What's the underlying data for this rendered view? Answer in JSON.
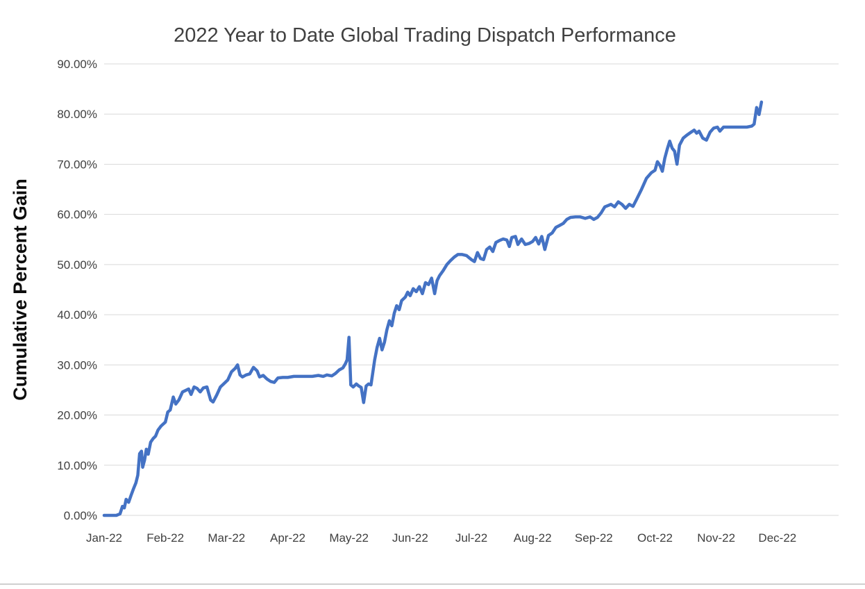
{
  "chart_data": {
    "type": "line",
    "title": "2022 Year to Date Global Trading Dispatch Performance",
    "xlabel": "",
    "ylabel": "Cumulative Percent Gain",
    "ylim": [
      0,
      90
    ],
    "xlim_months": [
      0,
      12
    ],
    "grid": "horizontal-only",
    "legend": "none",
    "gridline_color": "#D9D9D9",
    "bottom_border_color": "#BFBFBF",
    "y_ticks": [
      {
        "value": 0,
        "label": "0.00%"
      },
      {
        "value": 10,
        "label": "10.00%"
      },
      {
        "value": 20,
        "label": "20.00%"
      },
      {
        "value": 30,
        "label": "30.00%"
      },
      {
        "value": 40,
        "label": "40.00%"
      },
      {
        "value": 50,
        "label": "50.00%"
      },
      {
        "value": 60,
        "label": "60.00%"
      },
      {
        "value": 70,
        "label": "70.00%"
      },
      {
        "value": 80,
        "label": "80.00%"
      },
      {
        "value": 90,
        "label": "90.00%"
      }
    ],
    "x_tick_labels": [
      "Jan-22",
      "Feb-22",
      "Mar-22",
      "Apr-22",
      "May-22",
      "Jun-22",
      "Jul-22",
      "Aug-22",
      "Sep-22",
      "Oct-22",
      "Nov-22",
      "Dec-22"
    ],
    "series": [
      {
        "name": "Cumulative Percent Gain",
        "color": "#4472C4",
        "stroke_width": 4.5,
        "points": [
          [
            0.0,
            0
          ],
          [
            0.1,
            0
          ],
          [
            0.2,
            0
          ],
          [
            0.26,
            0.3
          ],
          [
            0.3,
            1.8
          ],
          [
            0.33,
            1.5
          ],
          [
            0.36,
            3.2
          ],
          [
            0.4,
            2.6
          ],
          [
            0.44,
            4.0
          ],
          [
            0.48,
            5.3
          ],
          [
            0.52,
            6.5
          ],
          [
            0.55,
            8.0
          ],
          [
            0.58,
            12.3
          ],
          [
            0.61,
            12.8
          ],
          [
            0.63,
            9.6
          ],
          [
            0.66,
            11.0
          ],
          [
            0.69,
            13.2
          ],
          [
            0.72,
            12.2
          ],
          [
            0.76,
            14.6
          ],
          [
            0.8,
            15.3
          ],
          [
            0.84,
            15.8
          ],
          [
            0.88,
            17.0
          ],
          [
            0.93,
            17.8
          ],
          [
            1.0,
            18.6
          ],
          [
            1.04,
            20.6
          ],
          [
            1.08,
            21.0
          ],
          [
            1.13,
            23.6
          ],
          [
            1.17,
            22.2
          ],
          [
            1.22,
            23.0
          ],
          [
            1.28,
            24.6
          ],
          [
            1.33,
            24.9
          ],
          [
            1.38,
            25.2
          ],
          [
            1.42,
            24.1
          ],
          [
            1.47,
            25.6
          ],
          [
            1.52,
            25.3
          ],
          [
            1.57,
            24.6
          ],
          [
            1.62,
            25.4
          ],
          [
            1.68,
            25.6
          ],
          [
            1.74,
            23.0
          ],
          [
            1.78,
            22.6
          ],
          [
            1.84,
            24.0
          ],
          [
            1.9,
            25.6
          ],
          [
            1.96,
            26.3
          ],
          [
            2.02,
            27.0
          ],
          [
            2.08,
            28.6
          ],
          [
            2.14,
            29.3
          ],
          [
            2.18,
            30.0
          ],
          [
            2.22,
            28.0
          ],
          [
            2.26,
            27.6
          ],
          [
            2.32,
            28.0
          ],
          [
            2.38,
            28.2
          ],
          [
            2.44,
            29.5
          ],
          [
            2.5,
            28.8
          ],
          [
            2.54,
            27.6
          ],
          [
            2.6,
            27.9
          ],
          [
            2.66,
            27.2
          ],
          [
            2.72,
            26.7
          ],
          [
            2.78,
            26.5
          ],
          [
            2.84,
            27.4
          ],
          [
            2.92,
            27.5
          ],
          [
            3.0,
            27.5
          ],
          [
            3.1,
            27.7
          ],
          [
            3.2,
            27.7
          ],
          [
            3.3,
            27.7
          ],
          [
            3.4,
            27.7
          ],
          [
            3.5,
            27.9
          ],
          [
            3.58,
            27.7
          ],
          [
            3.64,
            28.0
          ],
          [
            3.72,
            27.8
          ],
          [
            3.78,
            28.3
          ],
          [
            3.84,
            29.0
          ],
          [
            3.9,
            29.4
          ],
          [
            3.94,
            30.2
          ],
          [
            3.97,
            31.0
          ],
          [
            4.0,
            35.5
          ],
          [
            4.03,
            26.0
          ],
          [
            4.07,
            25.6
          ],
          [
            4.12,
            26.2
          ],
          [
            4.16,
            25.8
          ],
          [
            4.2,
            25.5
          ],
          [
            4.24,
            22.5
          ],
          [
            4.28,
            25.8
          ],
          [
            4.32,
            26.2
          ],
          [
            4.36,
            26.0
          ],
          [
            4.42,
            31.0
          ],
          [
            4.46,
            33.5
          ],
          [
            4.5,
            35.3
          ],
          [
            4.54,
            33.0
          ],
          [
            4.58,
            34.5
          ],
          [
            4.62,
            37.0
          ],
          [
            4.66,
            38.8
          ],
          [
            4.7,
            37.8
          ],
          [
            4.74,
            40.3
          ],
          [
            4.78,
            41.8
          ],
          [
            4.82,
            41.0
          ],
          [
            4.86,
            42.8
          ],
          [
            4.92,
            43.5
          ],
          [
            4.96,
            44.5
          ],
          [
            5.0,
            43.8
          ],
          [
            5.05,
            45.2
          ],
          [
            5.1,
            44.6
          ],
          [
            5.15,
            45.6
          ],
          [
            5.2,
            44.2
          ],
          [
            5.25,
            46.4
          ],
          [
            5.3,
            46.0
          ],
          [
            5.35,
            47.3
          ],
          [
            5.4,
            44.2
          ],
          [
            5.44,
            46.8
          ],
          [
            5.48,
            47.8
          ],
          [
            5.54,
            48.8
          ],
          [
            5.6,
            50.0
          ],
          [
            5.66,
            50.8
          ],
          [
            5.72,
            51.5
          ],
          [
            5.78,
            52.0
          ],
          [
            5.85,
            52.0
          ],
          [
            5.92,
            51.8
          ],
          [
            6.0,
            51.0
          ],
          [
            6.05,
            50.6
          ],
          [
            6.1,
            52.4
          ],
          [
            6.15,
            51.2
          ],
          [
            6.2,
            51.0
          ],
          [
            6.25,
            53.0
          ],
          [
            6.3,
            53.5
          ],
          [
            6.35,
            52.6
          ],
          [
            6.4,
            54.4
          ],
          [
            6.46,
            54.8
          ],
          [
            6.52,
            55.1
          ],
          [
            6.58,
            54.9
          ],
          [
            6.62,
            53.6
          ],
          [
            6.66,
            55.4
          ],
          [
            6.72,
            55.6
          ],
          [
            6.76,
            54.0
          ],
          [
            6.82,
            55.1
          ],
          [
            6.88,
            54.0
          ],
          [
            6.94,
            54.2
          ],
          [
            7.0,
            54.6
          ],
          [
            7.05,
            55.4
          ],
          [
            7.1,
            54.1
          ],
          [
            7.15,
            55.6
          ],
          [
            7.2,
            53.0
          ],
          [
            7.26,
            55.8
          ],
          [
            7.32,
            56.3
          ],
          [
            7.38,
            57.4
          ],
          [
            7.44,
            57.8
          ],
          [
            7.5,
            58.2
          ],
          [
            7.56,
            59.0
          ],
          [
            7.62,
            59.4
          ],
          [
            7.7,
            59.5
          ],
          [
            7.78,
            59.5
          ],
          [
            7.86,
            59.2
          ],
          [
            7.94,
            59.5
          ],
          [
            8.0,
            59.0
          ],
          [
            8.06,
            59.4
          ],
          [
            8.12,
            60.3
          ],
          [
            8.18,
            61.5
          ],
          [
            8.24,
            61.8
          ],
          [
            8.28,
            62.0
          ],
          [
            8.34,
            61.5
          ],
          [
            8.4,
            62.5
          ],
          [
            8.46,
            62.0
          ],
          [
            8.52,
            61.2
          ],
          [
            8.58,
            62.0
          ],
          [
            8.64,
            61.6
          ],
          [
            8.7,
            63.0
          ],
          [
            8.78,
            65.0
          ],
          [
            8.86,
            67.2
          ],
          [
            8.94,
            68.3
          ],
          [
            9.0,
            68.8
          ],
          [
            9.04,
            70.5
          ],
          [
            9.08,
            69.8
          ],
          [
            9.12,
            68.6
          ],
          [
            9.16,
            71.2
          ],
          [
            9.2,
            73.0
          ],
          [
            9.24,
            74.6
          ],
          [
            9.28,
            73.2
          ],
          [
            9.32,
            72.6
          ],
          [
            9.36,
            70.0
          ],
          [
            9.4,
            73.8
          ],
          [
            9.46,
            75.2
          ],
          [
            9.52,
            75.8
          ],
          [
            9.58,
            76.3
          ],
          [
            9.64,
            76.8
          ],
          [
            9.68,
            76.2
          ],
          [
            9.72,
            76.6
          ],
          [
            9.78,
            75.2
          ],
          [
            9.84,
            74.8
          ],
          [
            9.9,
            76.4
          ],
          [
            9.96,
            77.2
          ],
          [
            10.02,
            77.4
          ],
          [
            10.06,
            76.6
          ],
          [
            10.12,
            77.4
          ],
          [
            10.2,
            77.4
          ],
          [
            10.3,
            77.4
          ],
          [
            10.4,
            77.4
          ],
          [
            10.5,
            77.4
          ],
          [
            10.58,
            77.6
          ],
          [
            10.62,
            78.0
          ],
          [
            10.66,
            81.3
          ],
          [
            10.7,
            79.9
          ],
          [
            10.74,
            82.4
          ]
        ]
      }
    ]
  }
}
